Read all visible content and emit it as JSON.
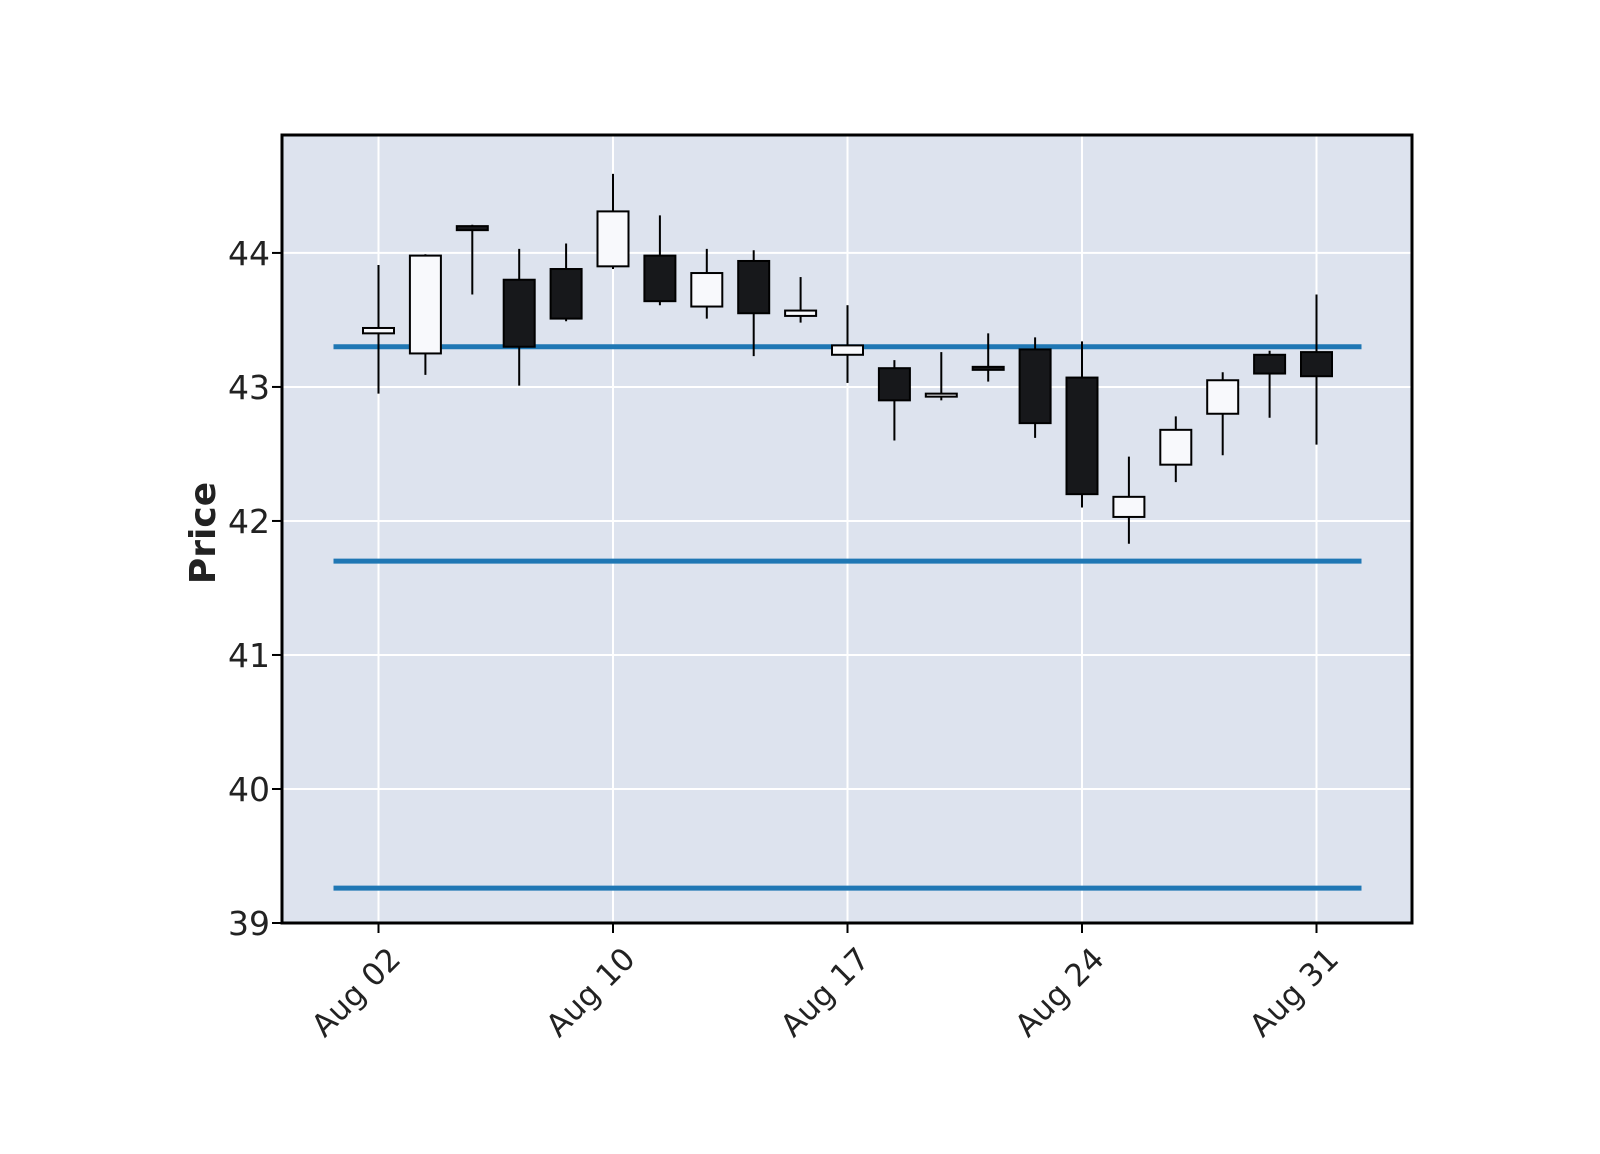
{
  "chart_data": {
    "type": "candlestick",
    "title": "",
    "xlabel": "",
    "ylabel": "Price",
    "ylim": [
      39,
      44.88
    ],
    "yticks": [
      39,
      40,
      41,
      42,
      43,
      44
    ],
    "xtick_labels": [
      "Aug 02",
      "Aug 10",
      "Aug 17",
      "Aug 24",
      "Aug 31"
    ],
    "xtick_index": [
      0,
      5,
      10,
      15,
      20
    ],
    "grid": true,
    "colors": {
      "background": "#dde3ee",
      "grid": "#ffffff",
      "up_body": "#f8f9fc",
      "down_body": "#17181b",
      "edge": "#000000",
      "hline": "#1f77b4"
    },
    "hlines": [
      43.3,
      41.7,
      39.26
    ],
    "candles": [
      {
        "o": 43.4,
        "h": 43.91,
        "l": 42.95,
        "c": 43.44
      },
      {
        "o": 43.25,
        "h": 43.99,
        "l": 43.09,
        "c": 43.98
      },
      {
        "o": 44.2,
        "h": 44.21,
        "l": 43.69,
        "c": 44.17
      },
      {
        "o": 43.8,
        "h": 44.03,
        "l": 43.01,
        "c": 43.3
      },
      {
        "o": 43.88,
        "h": 44.07,
        "l": 43.49,
        "c": 43.51
      },
      {
        "o": 43.9,
        "h": 44.59,
        "l": 43.88,
        "c": 44.31
      },
      {
        "o": 43.98,
        "h": 44.28,
        "l": 43.61,
        "c": 43.64
      },
      {
        "o": 43.6,
        "h": 44.03,
        "l": 43.51,
        "c": 43.85
      },
      {
        "o": 43.94,
        "h": 44.02,
        "l": 43.23,
        "c": 43.55
      },
      {
        "o": 43.53,
        "h": 43.82,
        "l": 43.48,
        "c": 43.57
      },
      {
        "o": 43.24,
        "h": 43.61,
        "l": 43.03,
        "c": 43.31
      },
      {
        "o": 43.14,
        "h": 43.2,
        "l": 42.6,
        "c": 42.9
      },
      {
        "o": 42.94,
        "h": 43.26,
        "l": 42.9,
        "c": 42.95
      },
      {
        "o": 43.15,
        "h": 43.4,
        "l": 43.04,
        "c": 43.14
      },
      {
        "o": 43.28,
        "h": 43.37,
        "l": 42.62,
        "c": 42.73
      },
      {
        "o": 43.07,
        "h": 43.34,
        "l": 42.1,
        "c": 42.2
      },
      {
        "o": 42.03,
        "h": 42.48,
        "l": 41.83,
        "c": 42.18
      },
      {
        "o": 42.42,
        "h": 42.78,
        "l": 42.29,
        "c": 42.68
      },
      {
        "o": 42.8,
        "h": 43.11,
        "l": 42.49,
        "c": 43.05
      },
      {
        "o": 43.24,
        "h": 43.27,
        "l": 42.77,
        "c": 43.1
      },
      {
        "o": 43.26,
        "h": 43.69,
        "l": 42.57,
        "c": 43.08
      }
    ]
  }
}
